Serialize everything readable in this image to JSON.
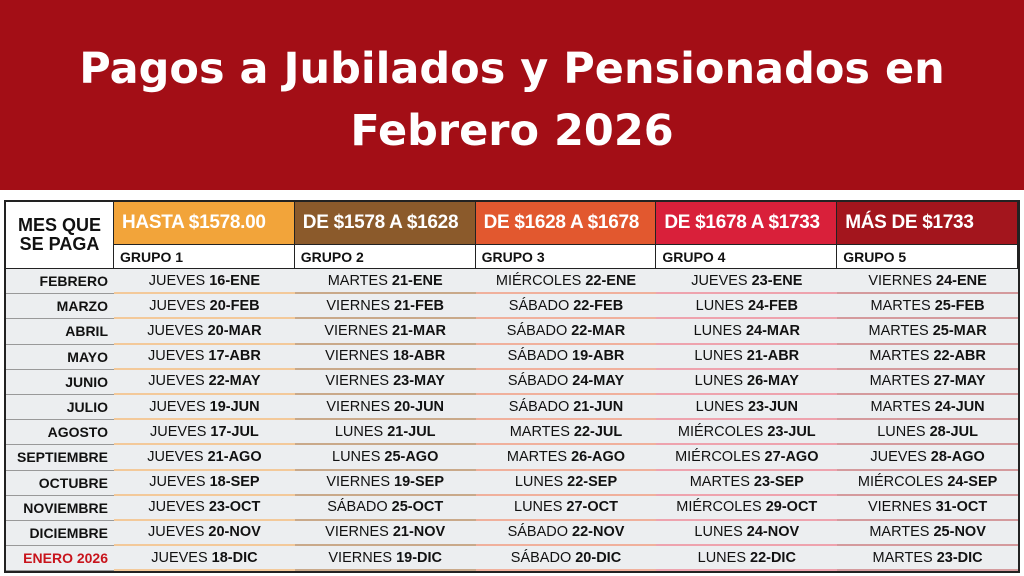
{
  "title": {
    "line1": "Pagos a Jubilados y Pensionados en",
    "line2": "Febrero 2026"
  },
  "table": {
    "month_header": "MES QUE SE PAGA",
    "groups": [
      {
        "range": "HASTA $1578.00",
        "name": "GRUPO 1",
        "color": "#f2a43a",
        "line": "#f3c99a"
      },
      {
        "range": "DE $1578 A $1628",
        "name": "GRUPO 2",
        "color": "#8b5a2b",
        "line": "#c9a98a"
      },
      {
        "range": "DE $1628 A $1678",
        "name": "GRUPO 3",
        "color": "#e2582f",
        "line": "#f0b09c"
      },
      {
        "range": "DE $1678 A $1733",
        "name": "GRUPO 4",
        "color": "#d9203a",
        "line": "#eea3ae"
      },
      {
        "range": "MÁS DE $1733",
        "name": "GRUPO 5",
        "color": "#a3151d",
        "line": "#d49a9d"
      }
    ],
    "rows": [
      {
        "month": "FEBRERO",
        "cells": [
          [
            "JUEVES",
            "16-ENE"
          ],
          [
            "MARTES",
            "21-ENE"
          ],
          [
            "MIÉRCOLES",
            "22-ENE"
          ],
          [
            "JUEVES",
            "23-ENE"
          ],
          [
            "VIERNES",
            "24-ENE"
          ]
        ]
      },
      {
        "month": "MARZO",
        "cells": [
          [
            "JUEVES",
            "20-FEB"
          ],
          [
            "VIERNES",
            "21-FEB"
          ],
          [
            "SÁBADO",
            "22-FEB"
          ],
          [
            "LUNES",
            "24-FEB"
          ],
          [
            "MARTES",
            "25-FEB"
          ]
        ]
      },
      {
        "month": "ABRIL",
        "cells": [
          [
            "JUEVES",
            "20-MAR"
          ],
          [
            "VIERNES",
            "21-MAR"
          ],
          [
            "SÁBADO",
            "22-MAR"
          ],
          [
            "LUNES",
            "24-MAR"
          ],
          [
            "MARTES",
            "25-MAR"
          ]
        ]
      },
      {
        "month": "MAYO",
        "cells": [
          [
            "JUEVES",
            "17-ABR"
          ],
          [
            "VIERNES",
            "18-ABR"
          ],
          [
            "SÁBADO",
            "19-ABR"
          ],
          [
            "LUNES",
            "21-ABR"
          ],
          [
            "MARTES",
            "22-ABR"
          ]
        ]
      },
      {
        "month": "JUNIO",
        "cells": [
          [
            "JUEVES",
            "22-MAY"
          ],
          [
            "VIERNES",
            "23-MAY"
          ],
          [
            "SÁBADO",
            "24-MAY"
          ],
          [
            "LUNES",
            "26-MAY"
          ],
          [
            "MARTES",
            "27-MAY"
          ]
        ]
      },
      {
        "month": "JULIO",
        "cells": [
          [
            "JUEVES",
            "19-JUN"
          ],
          [
            "VIERNES",
            "20-JUN"
          ],
          [
            "SÁBADO",
            "21-JUN"
          ],
          [
            "LUNES",
            "23-JUN"
          ],
          [
            "MARTES",
            "24-JUN"
          ]
        ]
      },
      {
        "month": "AGOSTO",
        "cells": [
          [
            "JUEVES",
            "17-JUL"
          ],
          [
            "LUNES",
            "21-JUL"
          ],
          [
            "MARTES",
            "22-JUL"
          ],
          [
            "MIÉRCOLES",
            "23-JUL"
          ],
          [
            "LUNES",
            "28-JUL"
          ]
        ]
      },
      {
        "month": "SEPTIEMBRE",
        "cells": [
          [
            "JUEVES",
            "21-AGO"
          ],
          [
            "LUNES",
            "25-AGO"
          ],
          [
            "MARTES",
            "26-AGO"
          ],
          [
            "MIÉRCOLES",
            "27-AGO"
          ],
          [
            "JUEVES",
            "28-AGO"
          ]
        ]
      },
      {
        "month": "OCTUBRE",
        "cells": [
          [
            "JUEVES",
            "18-SEP"
          ],
          [
            "VIERNES",
            "19-SEP"
          ],
          [
            "LUNES",
            "22-SEP"
          ],
          [
            "MARTES",
            "23-SEP"
          ],
          [
            "MIÉRCOLES",
            "24-SEP"
          ]
        ]
      },
      {
        "month": "NOVIEMBRE",
        "cells": [
          [
            "JUEVES",
            "23-OCT"
          ],
          [
            "SÁBADO",
            "25-OCT"
          ],
          [
            "LUNES",
            "27-OCT"
          ],
          [
            "MIÉRCOLES",
            "29-OCT"
          ],
          [
            "VIERNES",
            "31-OCT"
          ]
        ]
      },
      {
        "month": "DICIEMBRE",
        "cells": [
          [
            "JUEVES",
            "20-NOV"
          ],
          [
            "VIERNES",
            "21-NOV"
          ],
          [
            "SÁBADO",
            "22-NOV"
          ],
          [
            "LUNES",
            "24-NOV"
          ],
          [
            "MARTES",
            "25-NOV"
          ]
        ]
      },
      {
        "month": "ENERO 2026",
        "highlight": true,
        "cells": [
          [
            "JUEVES",
            "18-DIC"
          ],
          [
            "VIERNES",
            "19-DIC"
          ],
          [
            "SÁBADO",
            "20-DIC"
          ],
          [
            "LUNES",
            "22-DIC"
          ],
          [
            "MARTES",
            "23-DIC"
          ]
        ]
      }
    ]
  }
}
